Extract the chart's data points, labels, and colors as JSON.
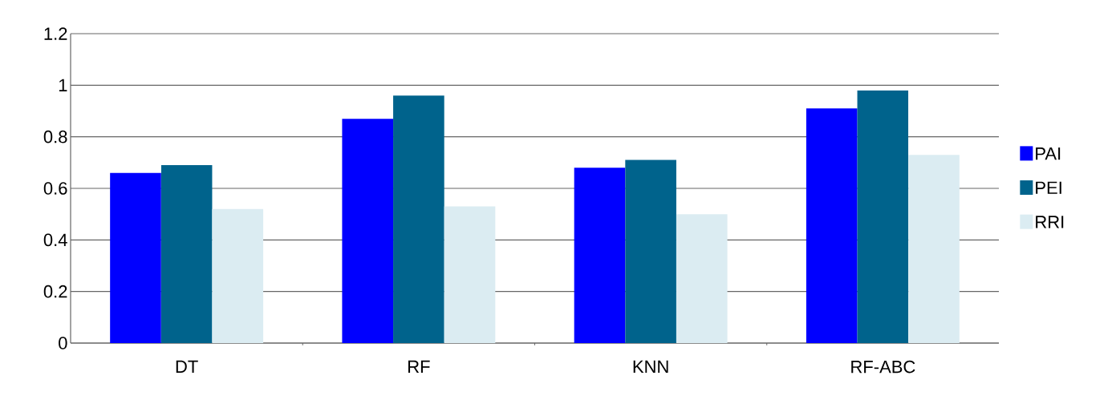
{
  "chart_data": {
    "type": "bar",
    "categories": [
      "DT",
      "RF",
      "KNN",
      "RF-ABC"
    ],
    "series": [
      {
        "name": "PAI",
        "color": "#0000ff",
        "values": [
          0.66,
          0.87,
          0.68,
          0.91
        ]
      },
      {
        "name": "PEI",
        "color": "#00638c",
        "values": [
          0.69,
          0.96,
          0.71,
          0.98
        ]
      },
      {
        "name": "RRI",
        "color": "#dbecf2",
        "values": [
          0.52,
          0.53,
          0.5,
          0.73
        ]
      }
    ],
    "ylim": [
      0,
      1.2
    ],
    "yticks": [
      0,
      0.2,
      0.4,
      0.6,
      0.8,
      1,
      1.2
    ],
    "grid": "y",
    "legend": "right"
  }
}
